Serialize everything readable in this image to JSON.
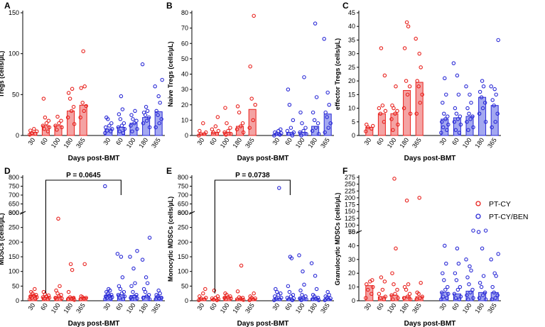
{
  "colors": {
    "red": "#e8211d",
    "red_fill": "#f4a3a3",
    "blue": "#2a2ad6",
    "blue_fill": "#a3a8f0",
    "axis": "#000000"
  },
  "legend": {
    "items": [
      {
        "label": "PT-CY",
        "color": "#e8211d"
      },
      {
        "label": "PT-CY/BEN",
        "color": "#2a2ad6"
      }
    ]
  },
  "chart_data": [
    {
      "id": "A",
      "panel_label": "A",
      "type": "bar",
      "ylabel": "Tregs (cells/µL)",
      "xlabel": "Days post-BMT",
      "categories": [
        "30",
        "60",
        "100",
        "180",
        "365"
      ],
      "ylim": [
        0,
        150
      ],
      "yticks": [
        "0",
        "50",
        "100",
        "150"
      ],
      "ytick_values": [
        0,
        50,
        100,
        150
      ],
      "series": [
        {
          "name": "PT-CY",
          "bars": [
            4,
            12,
            12,
            30,
            37
          ],
          "points": [
            [
              1,
              2,
              3,
              5,
              6,
              8
            ],
            [
              5,
              8,
              10,
              12,
              15,
              18,
              22,
              45
            ],
            [
              7,
              10,
              12,
              15,
              18,
              23
            ],
            [
              14,
              22,
              30,
              35,
              45,
              52,
              57
            ],
            [
              22,
              30,
              36,
              40,
              58,
              60,
              103
            ]
          ]
        },
        {
          "name": "PT-CY/BEN",
          "bars": [
            8,
            10,
            15,
            22,
            29
          ],
          "points": [
            [
              3,
              5,
              6,
              8,
              10,
              12,
              15,
              20,
              22
            ],
            [
              3,
              5,
              8,
              10,
              12,
              15,
              20,
              26,
              32,
              48
            ],
            [
              5,
              8,
              12,
              15,
              18,
              20,
              25,
              30
            ],
            [
              10,
              15,
              18,
              22,
              25,
              28,
              30,
              35,
              87
            ],
            [
              10,
              15,
              20,
              25,
              30,
              40,
              48,
              60,
              68
            ]
          ]
        }
      ]
    },
    {
      "id": "B",
      "panel_label": "B",
      "type": "bar",
      "ylabel": "Naive Tregs (cells/µL)",
      "xlabel": "Days post-BMT",
      "categories": [
        "30",
        "60",
        "100",
        "180",
        "365"
      ],
      "ylim": [
        0,
        80
      ],
      "yticks": [
        "0",
        "10",
        "20",
        "30",
        "40",
        "50",
        "60",
        "70",
        "80"
      ],
      "ytick_values": [
        0,
        10,
        20,
        30,
        40,
        50,
        60,
        70,
        80
      ],
      "series": [
        {
          "name": "PT-CY",
          "bars": [
            1,
            2,
            2,
            6,
            17
          ],
          "points": [
            [
              0,
              1,
              1,
              2,
              3,
              8
            ],
            [
              1,
              2,
              3,
              4,
              6,
              12
            ],
            [
              0.5,
              1,
              2,
              3,
              5,
              8,
              18
            ],
            [
              2,
              4,
              6,
              8,
              15,
              19
            ],
            [
              5,
              10,
              20,
              24,
              45,
              78
            ]
          ]
        },
        {
          "name": "PT-CY/BEN",
          "bars": [
            1,
            2,
            2,
            6,
            14
          ],
          "points": [
            [
              0,
              0.5,
              1,
              1.5,
              2,
              3,
              4
            ],
            [
              0,
              1,
              2,
              3,
              5,
              10,
              20,
              30
            ],
            [
              0,
              1,
              2,
              3,
              5,
              8,
              15,
              38
            ],
            [
              1,
              3,
              5,
              8,
              10,
              15,
              25,
              73
            ],
            [
              2,
              5,
              8,
              12,
              15,
              20,
              28,
              63
            ]
          ]
        }
      ]
    },
    {
      "id": "C",
      "panel_label": "C",
      "type": "bar",
      "ylabel": "effector Tregs (cells/µL)",
      "xlabel": "Days post-BMT",
      "categories": [
        "30",
        "60",
        "100",
        "180",
        "365"
      ],
      "ylim": [
        0,
        45
      ],
      "yticks": [
        "0",
        "5",
        "10",
        "15",
        "20",
        "25",
        "30",
        "35",
        "40",
        "45"
      ],
      "ytick_values": [
        0,
        5,
        10,
        15,
        20,
        25,
        30,
        35,
        40,
        45
      ],
      "series": [
        {
          "name": "PT-CY",
          "bars": [
            3,
            8,
            8,
            16.5,
            19.5
          ],
          "points": [
            [
              1.5,
              2.5,
              3,
              3.5,
              4
            ],
            [
              5,
              8,
              9,
              10,
              11,
              22,
              32
            ],
            [
              2,
              4,
              6,
              8,
              9,
              10,
              11,
              18
            ],
            [
              8,
              10,
              15,
              18,
              20,
              32,
              40,
              41.5
            ],
            [
              8,
              12,
              15,
              18,
              20,
              25,
              30,
              35.5
            ]
          ]
        },
        {
          "name": "PT-CY/BEN",
          "bars": [
            6,
            6.5,
            7,
            14,
            11
          ],
          "points": [
            [
              1,
              2,
              3,
              4,
              5,
              6,
              7,
              8,
              12,
              15,
              21
            ],
            [
              1,
              2,
              4,
              5,
              6,
              7,
              8,
              10,
              15,
              22,
              26.5
            ],
            [
              2,
              3,
              5,
              6,
              7,
              8,
              10,
              12,
              15,
              18
            ],
            [
              5,
              8,
              10,
              12,
              14,
              16,
              18,
              20
            ],
            [
              3,
              5,
              8,
              11,
              13,
              15,
              17,
              18,
              35
            ]
          ]
        }
      ]
    },
    {
      "id": "D",
      "panel_label": "D",
      "type": "bar",
      "ylabel": "MDSCs (cells/µL)",
      "xlabel": "Days post-BMT",
      "categories": [
        "30",
        "60",
        "100",
        "180",
        "365"
      ],
      "axis_break": {
        "lower_max": 300,
        "upper_min": 600,
        "upper_max": 800
      },
      "yticks": [
        "0",
        "50",
        "100",
        "150",
        "200",
        "250",
        "300",
        "600",
        "650",
        "700",
        "750",
        "800"
      ],
      "ytick_values": [
        0,
        50,
        100,
        150,
        200,
        250,
        300,
        600,
        650,
        700,
        750,
        800
      ],
      "annotation": "P = 0.0645",
      "comparison": {
        "from_series": "PT-CY",
        "from_category": "60",
        "to_series": "PT-CY/BEN",
        "to_category": "60"
      },
      "series": [
        {
          "name": "PT-CY",
          "bars": [
            18,
            12,
            14,
            12,
            11
          ],
          "points": [
            [
              5,
              8,
              10,
              12,
              15,
              18,
              20,
              25,
              30,
              40
            ],
            [
              5,
              8,
              10,
              12,
              15,
              18,
              22,
              30
            ],
            [
              5,
              8,
              10,
              15,
              20,
              25,
              35,
              50,
              280
            ],
            [
              3,
              5,
              8,
              10,
              12,
              30,
              105,
              125
            ],
            [
              5,
              8,
              10,
              12,
              15,
              125
            ]
          ]
        },
        {
          "name": "PT-CY/BEN",
          "bars": [
            18,
            20,
            18,
            16,
            15
          ],
          "points": [
            [
              5,
              8,
              10,
              12,
              15,
              18,
              20,
              25,
              30,
              35,
              40,
              750
            ],
            [
              5,
              10,
              15,
              20,
              25,
              30,
              40,
              50,
              80,
              150,
              160
            ],
            [
              5,
              8,
              10,
              15,
              20,
              30,
              50,
              60,
              110,
              150,
              170
            ],
            [
              5,
              10,
              15,
              20,
              30,
              40,
              60,
              80,
              140,
              215
            ],
            [
              5,
              8,
              10,
              15,
              20,
              25,
              35
            ]
          ]
        }
      ]
    },
    {
      "id": "E",
      "panel_label": "E",
      "type": "bar",
      "ylabel": "Monocytic MDSCs (cells/µL)",
      "xlabel": "Days post-BMT",
      "categories": [
        "30",
        "60",
        "100",
        "180",
        "365"
      ],
      "axis_break": {
        "lower_max": 300,
        "upper_min": 600,
        "upper_max": 800
      },
      "yticks": [
        "0",
        "50",
        "100",
        "150",
        "200",
        "250",
        "300",
        "600",
        "650",
        "700",
        "750",
        "800"
      ],
      "ytick_values": [
        0,
        50,
        100,
        150,
        200,
        250,
        300,
        600,
        650,
        700,
        750,
        800
      ],
      "annotation": "P = 0.0738",
      "comparison": {
        "from_series": "PT-CY",
        "from_category": "60",
        "to_series": "PT-CY/BEN",
        "to_category": "60"
      },
      "series": [
        {
          "name": "PT-CY",
          "bars": [
            8,
            6,
            12,
            6,
            7
          ],
          "points": [
            [
              2,
              5,
              8,
              10,
              15,
              25,
              40
            ],
            [
              2,
              4,
              6,
              8,
              10,
              15,
              35
            ],
            [
              5,
              8,
              10,
              12,
              15,
              20,
              25
            ],
            [
              3,
              5,
              8,
              10,
              12,
              32,
              120
            ],
            [
              2,
              5,
              8,
              10,
              15,
              25
            ]
          ]
        },
        {
          "name": "PT-CY/BEN",
          "bars": [
            8,
            6,
            10,
            8,
            6
          ],
          "points": [
            [
              2,
              5,
              8,
              10,
              15,
              20,
              25,
              30,
              40,
              740
            ],
            [
              2,
              5,
              8,
              10,
              15,
              20,
              30,
              50,
              145,
              150
            ],
            [
              2,
              5,
              8,
              10,
              15,
              20,
              35,
              55,
              100,
              155
            ],
            [
              2,
              5,
              8,
              10,
              15,
              20,
              40,
              85,
              128
            ],
            [
              2,
              5,
              8,
              10,
              15,
              20,
              30
            ]
          ]
        }
      ]
    },
    {
      "id": "F",
      "panel_label": "F",
      "type": "bar",
      "ylabel": "Granulocytic MDSCs (cells/µL)",
      "xlabel": "Days post-BMT",
      "categories": [
        "30",
        "60",
        "100",
        "180",
        "365"
      ],
      "axis_break": {
        "lower_max": 50,
        "upper_min": 75,
        "upper_max": 275
      },
      "yticks": [
        "0",
        "10",
        "20",
        "30",
        "40",
        "50",
        "75",
        "100",
        "125",
        "150",
        "175",
        "200",
        "225",
        "250",
        "275"
      ],
      "ytick_values": [
        0,
        10,
        20,
        30,
        40,
        50,
        75,
        100,
        125,
        150,
        175,
        200,
        225,
        250,
        275
      ],
      "series": [
        {
          "name": "PT-CY",
          "bars": [
            11,
            3,
            4,
            3,
            3
          ],
          "points": [
            [
              2,
              5,
              8,
              10,
              12,
              14,
              15
            ],
            [
              1,
              2,
              3,
              5,
              8,
              14,
              17
            ],
            [
              1,
              2,
              4,
              5,
              8,
              12,
              20,
              38,
              270
            ],
            [
              1,
              2,
              3,
              5,
              8,
              10,
              12,
              190
            ],
            [
              1,
              2,
              3,
              5,
              6,
              13,
              200
            ]
          ]
        },
        {
          "name": "PT-CY/BEN",
          "bars": [
            6,
            5,
            7,
            6,
            6
          ],
          "points": [
            [
              1,
              2,
              3,
              5,
              6,
              8,
              10,
              15,
              20,
              27,
              40
            ],
            [
              1,
              2,
              3,
              5,
              8,
              10,
              15,
              20,
              27,
              38
            ],
            [
              1,
              2,
              4,
              6,
              8,
              12,
              17,
              22,
              25,
              30,
              80
            ],
            [
              1,
              2,
              4,
              6,
              10,
              13,
              18,
              38,
              75,
              80
            ],
            [
              1,
              2,
              4,
              6,
              10,
              18,
              20,
              30,
              34
            ]
          ]
        }
      ]
    }
  ]
}
